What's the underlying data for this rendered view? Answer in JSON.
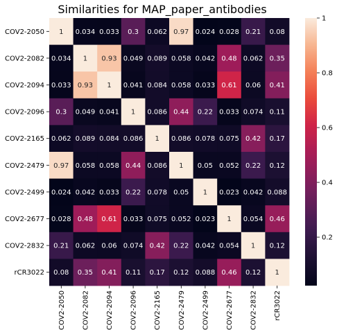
{
  "chart_data": {
    "type": "heatmap",
    "title": "Similarities for MAP_paper_antibodies",
    "rows": [
      "COV2-2050",
      "COV2-2082",
      "COV2-2094",
      "COV2-2096",
      "COV2-2165",
      "COV2-2479",
      "COV2-2499",
      "COV2-2677",
      "COV2-2832",
      "rCR3022"
    ],
    "columns": [
      "COV2-2050",
      "COV2-2082",
      "COV2-2094",
      "COV2-2096",
      "COV2-2165",
      "COV2-2479",
      "COV2-2499",
      "COV2-2677",
      "COV2-2832",
      "rCR3022"
    ],
    "values": [
      [
        1,
        0.034,
        0.033,
        0.3,
        0.062,
        0.97,
        0.024,
        0.028,
        0.21,
        0.08
      ],
      [
        0.034,
        1,
        0.93,
        0.049,
        0.089,
        0.058,
        0.042,
        0.48,
        0.062,
        0.35
      ],
      [
        0.033,
        0.93,
        1,
        0.041,
        0.084,
        0.058,
        0.033,
        0.61,
        0.06,
        0.41
      ],
      [
        0.3,
        0.049,
        0.041,
        1,
        0.086,
        0.44,
        0.22,
        0.033,
        0.074,
        0.11
      ],
      [
        0.062,
        0.089,
        0.084,
        0.086,
        1,
        0.086,
        0.078,
        0.075,
        0.42,
        0.17
      ],
      [
        0.97,
        0.058,
        0.058,
        0.44,
        0.086,
        1,
        0.05,
        0.052,
        0.22,
        0.12
      ],
      [
        0.024,
        0.042,
        0.033,
        0.22,
        0.078,
        0.05,
        1,
        0.023,
        0.042,
        0.088
      ],
      [
        0.028,
        0.48,
        0.61,
        0.033,
        0.075,
        0.052,
        0.023,
        1,
        0.054,
        0.46
      ],
      [
        0.21,
        0.062,
        0.06,
        0.074,
        0.42,
        0.22,
        0.042,
        0.054,
        1,
        0.12
      ],
      [
        0.08,
        0.35,
        0.41,
        0.11,
        0.17,
        0.12,
        0.088,
        0.46,
        0.12,
        1
      ]
    ],
    "value_labels": [
      [
        "1",
        "0.034",
        "0.033",
        "0.3",
        "0.062",
        "0.97",
        "0.024",
        "0.028",
        "0.21",
        "0.08"
      ],
      [
        "0.034",
        "1",
        "0.93",
        "0.049",
        "0.089",
        "0.058",
        "0.042",
        "0.48",
        "0.062",
        "0.35"
      ],
      [
        "0.033",
        "0.93",
        "1",
        "0.041",
        "0.084",
        "0.058",
        "0.033",
        "0.61",
        "0.06",
        "0.41"
      ],
      [
        "0.3",
        "0.049",
        "0.041",
        "1",
        "0.086",
        "0.44",
        "0.22",
        "0.033",
        "0.074",
        "0.11"
      ],
      [
        "0.062",
        "0.089",
        "0.084",
        "0.086",
        "1",
        "0.086",
        "0.078",
        "0.075",
        "0.42",
        "0.17"
      ],
      [
        "0.97",
        "0.058",
        "0.058",
        "0.44",
        "0.086",
        "1",
        "0.05",
        "0.052",
        "0.22",
        "0.12"
      ],
      [
        "0.024",
        "0.042",
        "0.033",
        "0.22",
        "0.078",
        "0.05",
        "1",
        "0.023",
        "0.042",
        "0.088"
      ],
      [
        "0.028",
        "0.48",
        "0.61",
        "0.033",
        "0.075",
        "0.052",
        "0.023",
        "1",
        "0.054",
        "0.46"
      ],
      [
        "0.21",
        "0.062",
        "0.06",
        "0.074",
        "0.42",
        "0.22",
        "0.042",
        "0.054",
        "1",
        "0.12"
      ],
      [
        "0.08",
        "0.35",
        "0.41",
        "0.11",
        "0.17",
        "0.12",
        "0.088",
        "0.46",
        "0.12",
        "1"
      ]
    ],
    "colorbar": {
      "range": [
        0.023,
        1
      ],
      "ticks": [
        0.2,
        0.4,
        0.6,
        0.8,
        1.0
      ],
      "tick_labels": [
        "0.2",
        "0.4",
        "0.6",
        "0.8",
        "1"
      ]
    },
    "colormap": "rocket",
    "xlabel": "",
    "ylabel": ""
  }
}
